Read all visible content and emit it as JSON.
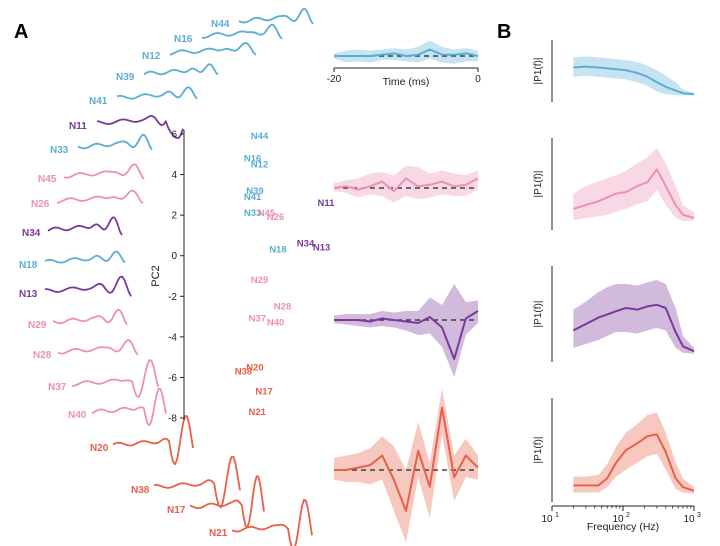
{
  "panels": {
    "a": "A",
    "b": "B"
  },
  "colors": {
    "blue": "#5aaed3",
    "pink": "#ee8fb6",
    "purple": "#7a3a9a",
    "red": "#e8604a",
    "dash": "#222222",
    "axis": "#222222"
  },
  "chart_data": [
    {
      "type": "line",
      "name": "neuron-waveforms",
      "units": [
        {
          "label": "N44",
          "group": "blue"
        },
        {
          "label": "N16",
          "group": "blue"
        },
        {
          "label": "N12",
          "group": "blue"
        },
        {
          "label": "N39",
          "group": "blue"
        },
        {
          "label": "N41",
          "group": "blue"
        },
        {
          "label": "N11",
          "group": "purple"
        },
        {
          "label": "N33",
          "group": "blue"
        },
        {
          "label": "N45",
          "group": "pink"
        },
        {
          "label": "N26",
          "group": "pink"
        },
        {
          "label": "N34",
          "group": "purple"
        },
        {
          "label": "N18",
          "group": "blue"
        },
        {
          "label": "N13",
          "group": "purple"
        },
        {
          "label": "N29",
          "group": "pink"
        },
        {
          "label": "N28",
          "group": "pink"
        },
        {
          "label": "N37",
          "group": "pink"
        },
        {
          "label": "N40",
          "group": "pink"
        },
        {
          "label": "N20",
          "group": "red"
        },
        {
          "label": "N38",
          "group": "red"
        },
        {
          "label": "N17",
          "group": "red"
        },
        {
          "label": "N21",
          "group": "red"
        }
      ]
    },
    {
      "type": "scatter",
      "name": "pc-space",
      "ylabel": "PC2",
      "ylim": [
        -8,
        6
      ],
      "yticks": [
        "6",
        "4",
        "2",
        "0",
        "-2",
        "-4",
        "-6",
        "-8"
      ],
      "points": [
        {
          "label": "N44",
          "x": 1.6,
          "y": 5.9,
          "group": "blue"
        },
        {
          "label": "N16",
          "x": 1.3,
          "y": 4.8,
          "group": "blue"
        },
        {
          "label": "N12",
          "x": 1.6,
          "y": 4.5,
          "group": "blue"
        },
        {
          "label": "N39",
          "x": 1.4,
          "y": 3.2,
          "group": "blue"
        },
        {
          "label": "N41",
          "x": 1.3,
          "y": 2.9,
          "group": "blue"
        },
        {
          "label": "N33",
          "x": 1.3,
          "y": 2.1,
          "group": "blue"
        },
        {
          "label": "N45",
          "x": 1.9,
          "y": 2.1,
          "group": "pink"
        },
        {
          "label": "N26",
          "x": 2.3,
          "y": 1.9,
          "group": "pink"
        },
        {
          "label": "N11",
          "x": 4.5,
          "y": 2.6,
          "group": "purple"
        },
        {
          "label": "N18",
          "x": 2.4,
          "y": 0.3,
          "group": "blue"
        },
        {
          "label": "N34",
          "x": 3.6,
          "y": 0.6,
          "group": "purple"
        },
        {
          "label": "N13",
          "x": 4.3,
          "y": 0.4,
          "group": "purple"
        },
        {
          "label": "N29",
          "x": 1.6,
          "y": -1.2,
          "group": "pink"
        },
        {
          "label": "N28",
          "x": 2.6,
          "y": -2.5,
          "group": "pink"
        },
        {
          "label": "N37",
          "x": 1.5,
          "y": -3.1,
          "group": "pink"
        },
        {
          "label": "N40",
          "x": 2.3,
          "y": -3.3,
          "group": "pink"
        },
        {
          "label": "N20",
          "x": 1.4,
          "y": -5.5,
          "group": "red"
        },
        {
          "label": "N38",
          "x": 0.9,
          "y": -5.7,
          "group": "red"
        },
        {
          "label": "N17",
          "x": 1.8,
          "y": -6.7,
          "group": "red"
        },
        {
          "label": "N21",
          "x": 1.5,
          "y": -7.7,
          "group": "red"
        }
      ]
    },
    {
      "type": "area",
      "name": "mean-waveforms",
      "xlabel": "Time (ms)",
      "xlim": [
        -20,
        0
      ],
      "xticks": [
        "-20",
        "0"
      ],
      "series": [
        {
          "group": "blue",
          "x": [
            -20,
            -18.3,
            -16.7,
            -15,
            -13.3,
            -11.7,
            -10,
            -8.3,
            -6.7,
            -5,
            -3.3,
            -1.7,
            0
          ],
          "mean": [
            0,
            0,
            0,
            0,
            0.1,
            0.2,
            0,
            0.1,
            0.5,
            0.1,
            0.1,
            0.2,
            0
          ],
          "upper": [
            0.2,
            0.4,
            0.5,
            0.4,
            0.5,
            0.6,
            0.5,
            0.7,
            1.2,
            0.7,
            0.5,
            0.6,
            0.4
          ],
          "lower": [
            -0.2,
            -0.5,
            -0.4,
            -0.5,
            -0.3,
            -0.3,
            -0.4,
            -0.5,
            -0.2,
            -0.5,
            -0.6,
            -0.4,
            -0.4
          ]
        },
        {
          "group": "pink",
          "x": [
            -20,
            -18.3,
            -16.7,
            -15,
            -13.3,
            -11.7,
            -10,
            -8.3,
            -6.7,
            -5,
            -3.3,
            -1.7,
            0
          ],
          "mean": [
            0,
            0.1,
            -0.1,
            0.1,
            0.4,
            -0.2,
            0.6,
            0.1,
            0.2,
            0.4,
            0.1,
            0.2,
            0.6
          ],
          "upper": [
            0.3,
            0.5,
            0.6,
            0.9,
            1.0,
            0.8,
            1.4,
            1.3,
            0.9,
            1.1,
            0.9,
            0.8,
            1.1
          ],
          "lower": [
            -0.2,
            -0.3,
            -0.6,
            -0.4,
            -0.5,
            -0.9,
            -0.5,
            -0.7,
            -0.6,
            -0.4,
            -0.5,
            -0.5,
            -0.1
          ]
        },
        {
          "group": "purple",
          "x": [
            -20,
            -18.3,
            -16.7,
            -15,
            -13.3,
            -11.7,
            -10,
            -8.3,
            -6.7,
            -5,
            -3.3,
            -1.7,
            0
          ],
          "mean": [
            0,
            0,
            0,
            -0.1,
            0.1,
            0,
            -0.1,
            -0.2,
            0.2,
            -0.5,
            -2.6,
            0.1,
            0.6
          ],
          "upper": [
            0.3,
            0.4,
            0.4,
            0.4,
            0.6,
            0.5,
            0.6,
            0.6,
            1.5,
            1.0,
            2.4,
            1.2,
            1.3
          ],
          "lower": [
            -0.2,
            -0.3,
            -0.4,
            -0.5,
            -0.4,
            -0.5,
            -0.7,
            -1.0,
            -0.9,
            -1.8,
            -3.8,
            -1.0,
            -0.2
          ]
        },
        {
          "group": "red",
          "x": [
            -20,
            -18.3,
            -16.7,
            -15,
            -13.3,
            -11.7,
            -10,
            -8.3,
            -6.7,
            -5,
            -3.3,
            -1.7,
            0
          ],
          "mean": [
            0,
            0,
            0.1,
            0.2,
            0.6,
            -0.4,
            -1.7,
            0.8,
            -0.7,
            2.6,
            -0.3,
            0.6,
            0.1
          ],
          "upper": [
            0.5,
            0.6,
            0.7,
            0.9,
            1.4,
            1.0,
            0.0,
            2.0,
            0.3,
            3.4,
            0.6,
            1.3,
            0.6
          ],
          "lower": [
            -0.4,
            -0.5,
            -0.5,
            -0.6,
            -0.4,
            -1.7,
            -3.0,
            -0.3,
            -2.0,
            1.5,
            -1.3,
            -0.3,
            -0.4
          ]
        }
      ]
    },
    {
      "type": "area",
      "name": "spectra",
      "xlabel": "Frequency (Hz)",
      "xscale": "log",
      "xlim": [
        10,
        1000
      ],
      "xticks": [
        {
          "value": 10,
          "label": "10",
          "sup": "1"
        },
        {
          "value": 100,
          "label": "10",
          "sup": "2"
        },
        {
          "value": 1000,
          "label": "10",
          "sup": "3"
        }
      ],
      "ylabel": "|P1(f)|",
      "series": [
        {
          "group": "blue",
          "f": [
            20,
            30,
            45,
            60,
            80,
            110,
            160,
            220,
            300,
            400,
            550,
            700,
            1000
          ],
          "mean": [
            0.62,
            0.64,
            0.62,
            0.6,
            0.58,
            0.56,
            0.5,
            0.42,
            0.3,
            0.2,
            0.12,
            0.06,
            0.04
          ],
          "upper": [
            0.84,
            0.86,
            0.84,
            0.82,
            0.8,
            0.78,
            0.74,
            0.66,
            0.56,
            0.44,
            0.3,
            0.14,
            0.06
          ],
          "lower": [
            0.42,
            0.44,
            0.42,
            0.4,
            0.38,
            0.36,
            0.3,
            0.22,
            0.1,
            0.04,
            0.02,
            0.02,
            0.02
          ]
        },
        {
          "group": "pink",
          "f": [
            20,
            30,
            45,
            60,
            80,
            110,
            160,
            220,
            300,
            400,
            550,
            700,
            1000
          ],
          "mean": [
            0.2,
            0.25,
            0.3,
            0.35,
            0.4,
            0.42,
            0.5,
            0.55,
            0.72,
            0.5,
            0.25,
            0.12,
            0.08
          ],
          "upper": [
            0.4,
            0.5,
            0.56,
            0.6,
            0.64,
            0.7,
            0.8,
            0.88,
            1.0,
            0.8,
            0.5,
            0.25,
            0.15
          ],
          "lower": [
            0.05,
            0.08,
            0.1,
            0.12,
            0.16,
            0.2,
            0.26,
            0.3,
            0.45,
            0.25,
            0.08,
            0.04,
            0.04
          ]
        },
        {
          "group": "purple",
          "f": [
            20,
            30,
            45,
            60,
            80,
            110,
            160,
            220,
            300,
            400,
            550,
            700,
            1000
          ],
          "mean": [
            0.32,
            0.4,
            0.48,
            0.52,
            0.56,
            0.6,
            0.58,
            0.62,
            0.64,
            0.6,
            0.3,
            0.12,
            0.06
          ],
          "upper": [
            0.58,
            0.68,
            0.8,
            0.86,
            0.9,
            0.9,
            0.88,
            0.92,
            0.95,
            0.9,
            0.6,
            0.25,
            0.1
          ],
          "lower": [
            0.1,
            0.15,
            0.2,
            0.25,
            0.3,
            0.3,
            0.28,
            0.32,
            0.35,
            0.32,
            0.1,
            0.04,
            0.03
          ]
        },
        {
          "group": "red",
          "f": [
            20,
            30,
            45,
            60,
            80,
            110,
            160,
            220,
            300,
            400,
            550,
            700,
            1000
          ],
          "mean": [
            0.12,
            0.12,
            0.12,
            0.2,
            0.38,
            0.52,
            0.6,
            0.68,
            0.7,
            0.5,
            0.2,
            0.1,
            0.06
          ],
          "upper": [
            0.22,
            0.22,
            0.24,
            0.36,
            0.56,
            0.72,
            0.82,
            0.92,
            0.95,
            0.72,
            0.38,
            0.2,
            0.1
          ],
          "lower": [
            0.04,
            0.04,
            0.04,
            0.1,
            0.22,
            0.3,
            0.38,
            0.45,
            0.48,
            0.3,
            0.08,
            0.04,
            0.03
          ]
        }
      ]
    }
  ]
}
